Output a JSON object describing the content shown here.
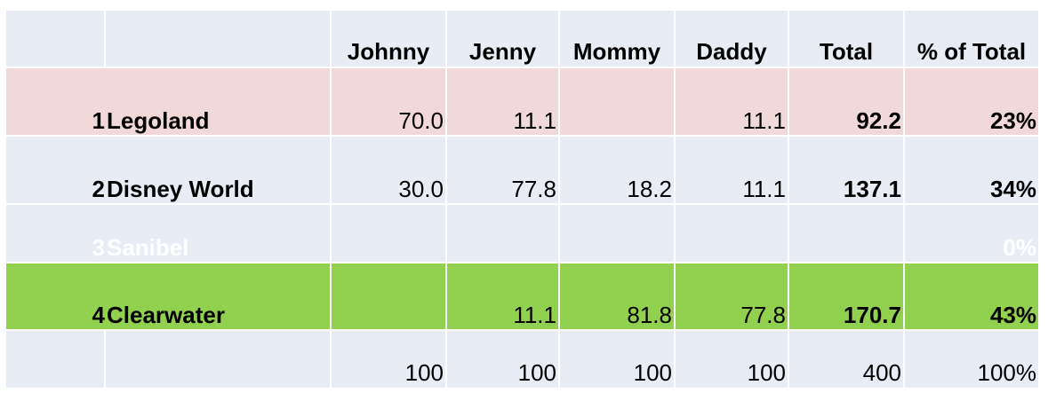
{
  "table": {
    "headers": [
      "Johnny",
      "Jenny",
      "Mommy",
      "Daddy",
      "Total",
      "% of Total"
    ],
    "rows": [
      {
        "rank": "1",
        "name": "Legoland",
        "values": [
          "70.0",
          "11.1",
          "",
          "11.1"
        ],
        "total": "92.2",
        "pct": "23%",
        "highlight": "#f2d9d9"
      },
      {
        "rank": "2",
        "name": "Disney World",
        "values": [
          "30.0",
          "77.8",
          "18.2",
          "11.1"
        ],
        "total": "137.1",
        "pct": "34%",
        "highlight": "#e8ecf4"
      },
      {
        "rank": "3",
        "name": "Sanibel",
        "values": [
          "",
          "",
          "",
          ""
        ],
        "total": "",
        "pct": "0%",
        "highlight": "#e8ecf4"
      },
      {
        "rank": "4",
        "name": "Clearwater",
        "values": [
          "",
          "11.1",
          "81.8",
          "77.8"
        ],
        "total": "170.7",
        "pct": "43%",
        "highlight": "#92d050"
      }
    ],
    "footer": [
      "100",
      "100",
      "100",
      "100",
      "400",
      "100%"
    ]
  },
  "colors": {
    "default_fill": "#e8ecf4",
    "row1_fill": "#f2d9d9",
    "row4_fill": "#92d050",
    "row3_text": "#ffffff"
  }
}
